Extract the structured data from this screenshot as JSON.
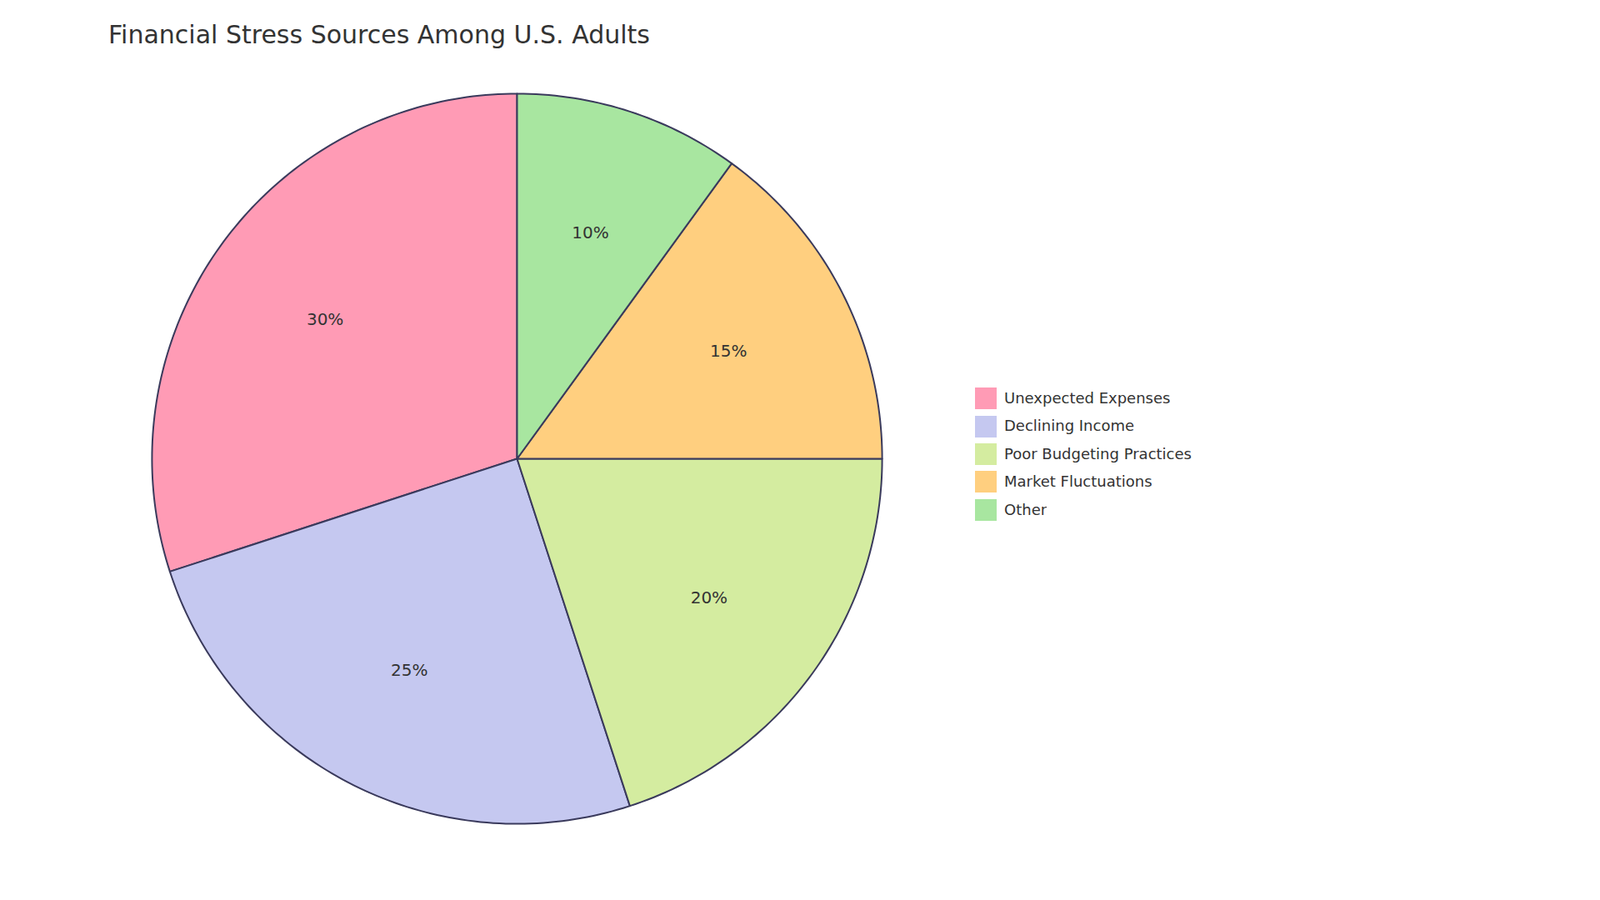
{
  "chart_data": {
    "type": "pie",
    "title": "Financial Stress Sources Among U.S. Adults",
    "categories": [
      "Unexpected Expenses",
      "Declining Income",
      "Poor Budgeting Practices",
      "Market Fluctuations",
      "Other"
    ],
    "values": [
      30,
      25,
      20,
      15,
      10
    ],
    "value_labels": [
      "30%",
      "25%",
      "20%",
      "15%",
      "10%"
    ],
    "colors": [
      "#FF9BB5",
      "#C5C8F0",
      "#D4ECA0",
      "#FFCF7F",
      "#A8E6A0"
    ],
    "data_labels": true,
    "legend": "right"
  }
}
